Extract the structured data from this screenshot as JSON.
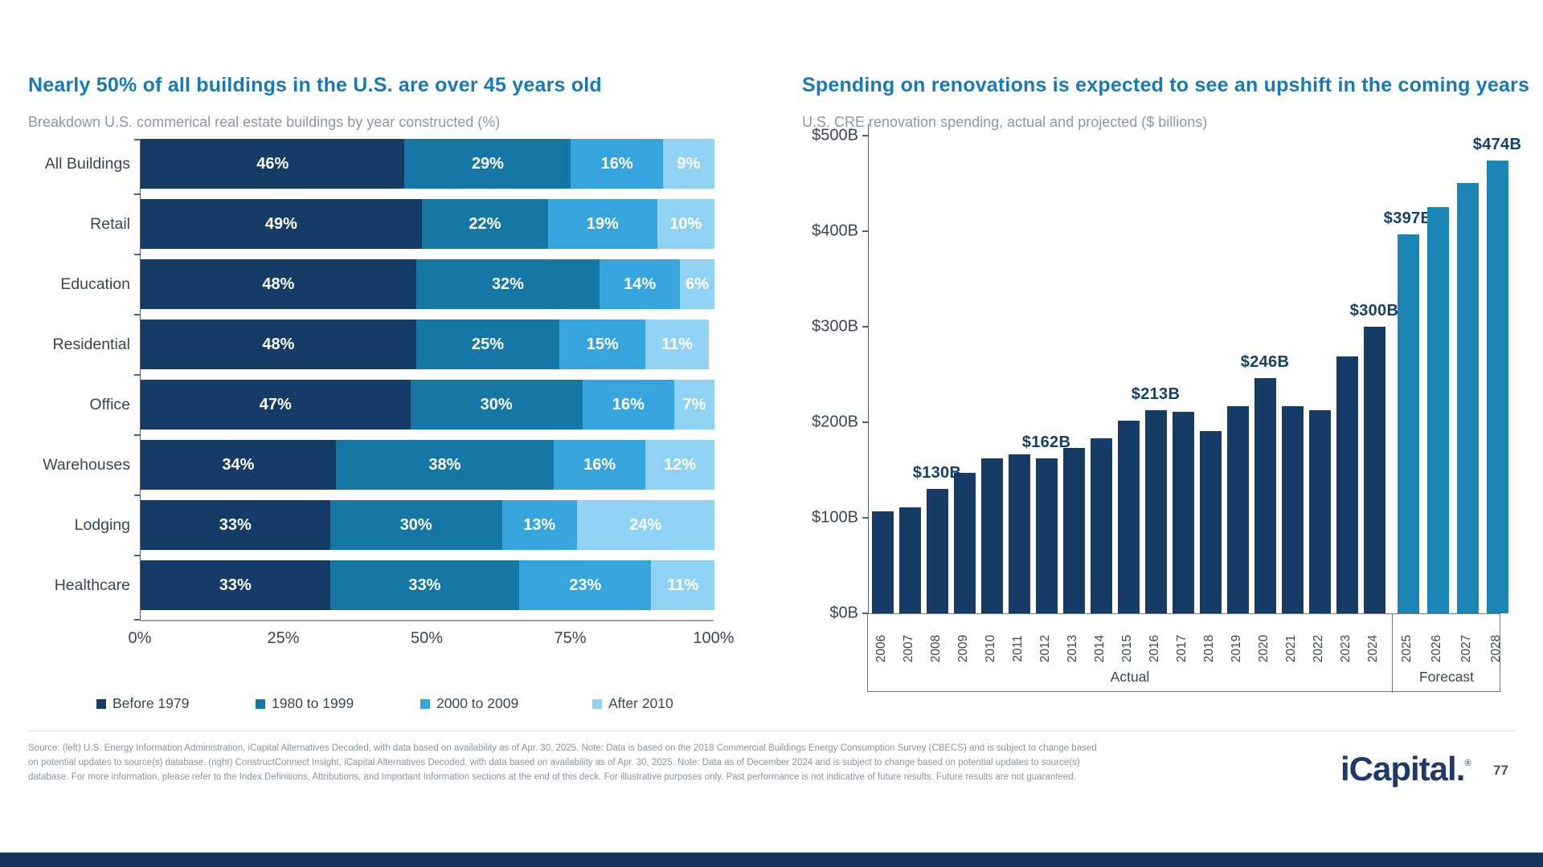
{
  "footer": {
    "source_text": "Source: (left) U.S. Energy Information Administration, iCapital Alternatives Decoded, with data based on availability as of Apr. 30, 2025. Note: Data is based on the 2018 Commercial Buildings Energy Consumption Survey (CBECS) and is subject to change based on potential updates to source(s) database. (right) ConstructConnect Insight, iCapital Alternatives Decoded, with data based on availability as of Apr. 30, 2025. Note: Data as of December 2024 and is subject to change based on potential updates to source(s) database. For more information, please refer to the Index Definitions, Attributions, and Important Information sections at the end of this deck. For illustrative purposes only. Past performance is not indicative of future results. Future results are not guaranteed.",
    "logo_text": "iCapital.",
    "registered_mark": "®",
    "page_number": "77"
  },
  "chart_data": [
    {
      "type": "bar",
      "orientation": "horizontal-stacked",
      "title": "Nearly 50% of all buildings in the U.S. are over 45 years old",
      "subtitle": "Breakdown U.S. commerical real estate buildings by year constructed (%)",
      "categories": [
        "All Buildings",
        "Retail",
        "Education",
        "Residential",
        "Office",
        "Warehouses",
        "Lodging",
        "Healthcare"
      ],
      "series": [
        {
          "name": "Before 1979",
          "color": "#143C66",
          "values": [
            46,
            49,
            48,
            48,
            47,
            34,
            33,
            33
          ]
        },
        {
          "name": "1980 to 1999",
          "color": "#1577A5",
          "values": [
            29,
            22,
            32,
            25,
            30,
            38,
            30,
            33
          ]
        },
        {
          "name": "2000 to 2009",
          "color": "#36A5DE",
          "values": [
            16,
            19,
            14,
            15,
            16,
            16,
            13,
            23
          ]
        },
        {
          "name": "After 2010",
          "color": "#8FD2F4",
          "values": [
            9,
            10,
            6,
            11,
            7,
            12,
            24,
            11
          ]
        }
      ],
      "value_suffix": "%",
      "x_ticks": [
        "0%",
        "25%",
        "50%",
        "75%",
        "100%"
      ],
      "xlim": [
        0,
        100
      ],
      "legend_position": "bottom",
      "grid": false
    },
    {
      "type": "bar",
      "orientation": "vertical",
      "title": "Spending on renovations is expected to see an upshift in the coming years",
      "subtitle": "U.S. CRE renovation spending, actual and projected ($ billions)",
      "x": [
        "2006",
        "2007",
        "2008",
        "2009",
        "2010",
        "2011",
        "2012",
        "2013",
        "2014",
        "2015",
        "2016",
        "2017",
        "2018",
        "2019",
        "2020",
        "2021",
        "2022",
        "2023",
        "2024",
        "2025",
        "2026",
        "2027",
        "2028"
      ],
      "values": [
        107,
        111,
        130,
        147,
        162,
        166,
        162,
        173,
        183,
        202,
        213,
        211,
        191,
        217,
        246,
        217,
        213,
        269,
        300,
        397,
        425,
        450,
        474
      ],
      "bar_labels": {
        "2008": "$130B",
        "2012": "$162B",
        "2016": "$213B",
        "2020": "$246B",
        "2024": "$300B",
        "2025": "$397B",
        "2028": "$474B"
      },
      "y_ticks": [
        "$0B",
        "$100B",
        "$200B",
        "$300B",
        "$400B",
        "$500B"
      ],
      "ylim": [
        0,
        500
      ],
      "groups": [
        {
          "label": "Actual",
          "start_year": "2006",
          "end_year": "2024",
          "color": "#143C66"
        },
        {
          "label": "Forecast",
          "start_year": "2025",
          "end_year": "2028",
          "color": "#1B85B5"
        }
      ],
      "grid": false
    }
  ]
}
